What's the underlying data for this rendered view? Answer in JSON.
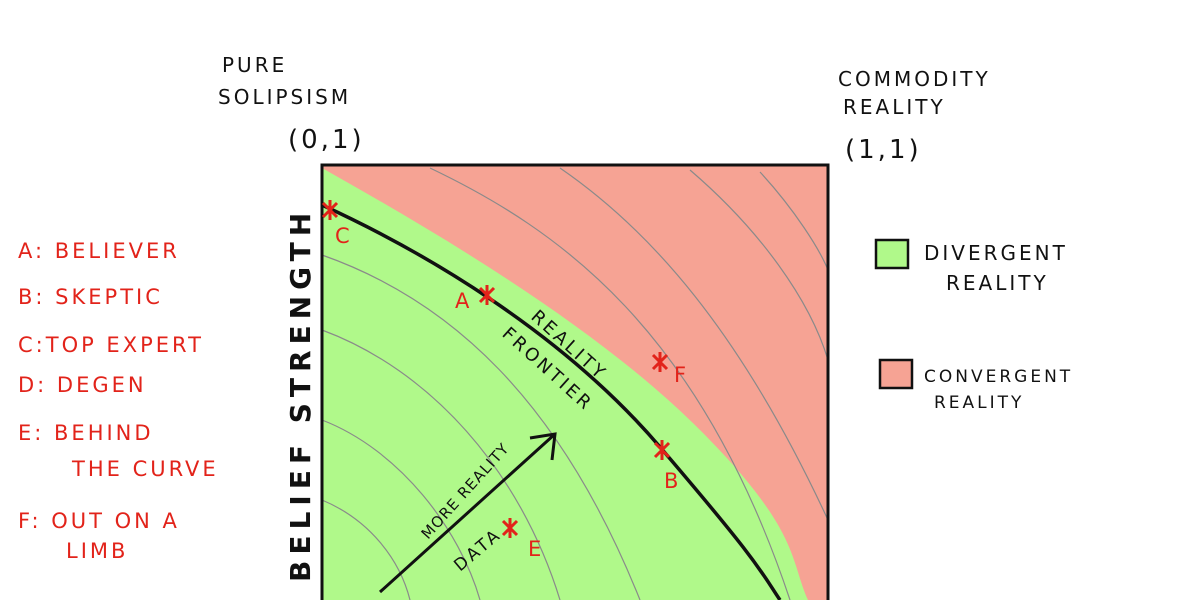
{
  "corners": {
    "top_left": {
      "label": [
        "PURE",
        "SOLIPSISM"
      ],
      "coords": "(0,1)"
    },
    "top_right": {
      "label": [
        "COMMODITY",
        "REALITY"
      ],
      "coords": "(1,1)"
    }
  },
  "axis_label": "BELIEF STRENGTH",
  "key": [
    [
      "A: BELIEVER"
    ],
    [
      "B: SKEPTIC"
    ],
    [
      "C:TOP EXPERT"
    ],
    [
      "D: DEGEN"
    ],
    [
      "E: BEHIND",
      "THE CURVE"
    ],
    [
      "F: OUT ON A",
      "LIMB"
    ]
  ],
  "frontier_label": [
    "REALITY",
    "FRONTIER"
  ],
  "arrow_label": [
    "MORE REALITY",
    "DATA"
  ],
  "points": [
    "A",
    "B",
    "C",
    "E",
    "F"
  ],
  "legend": [
    [
      "DIVERGENT",
      "REALITY"
    ],
    [
      "CONVERGENT",
      "REALITY"
    ]
  ]
}
